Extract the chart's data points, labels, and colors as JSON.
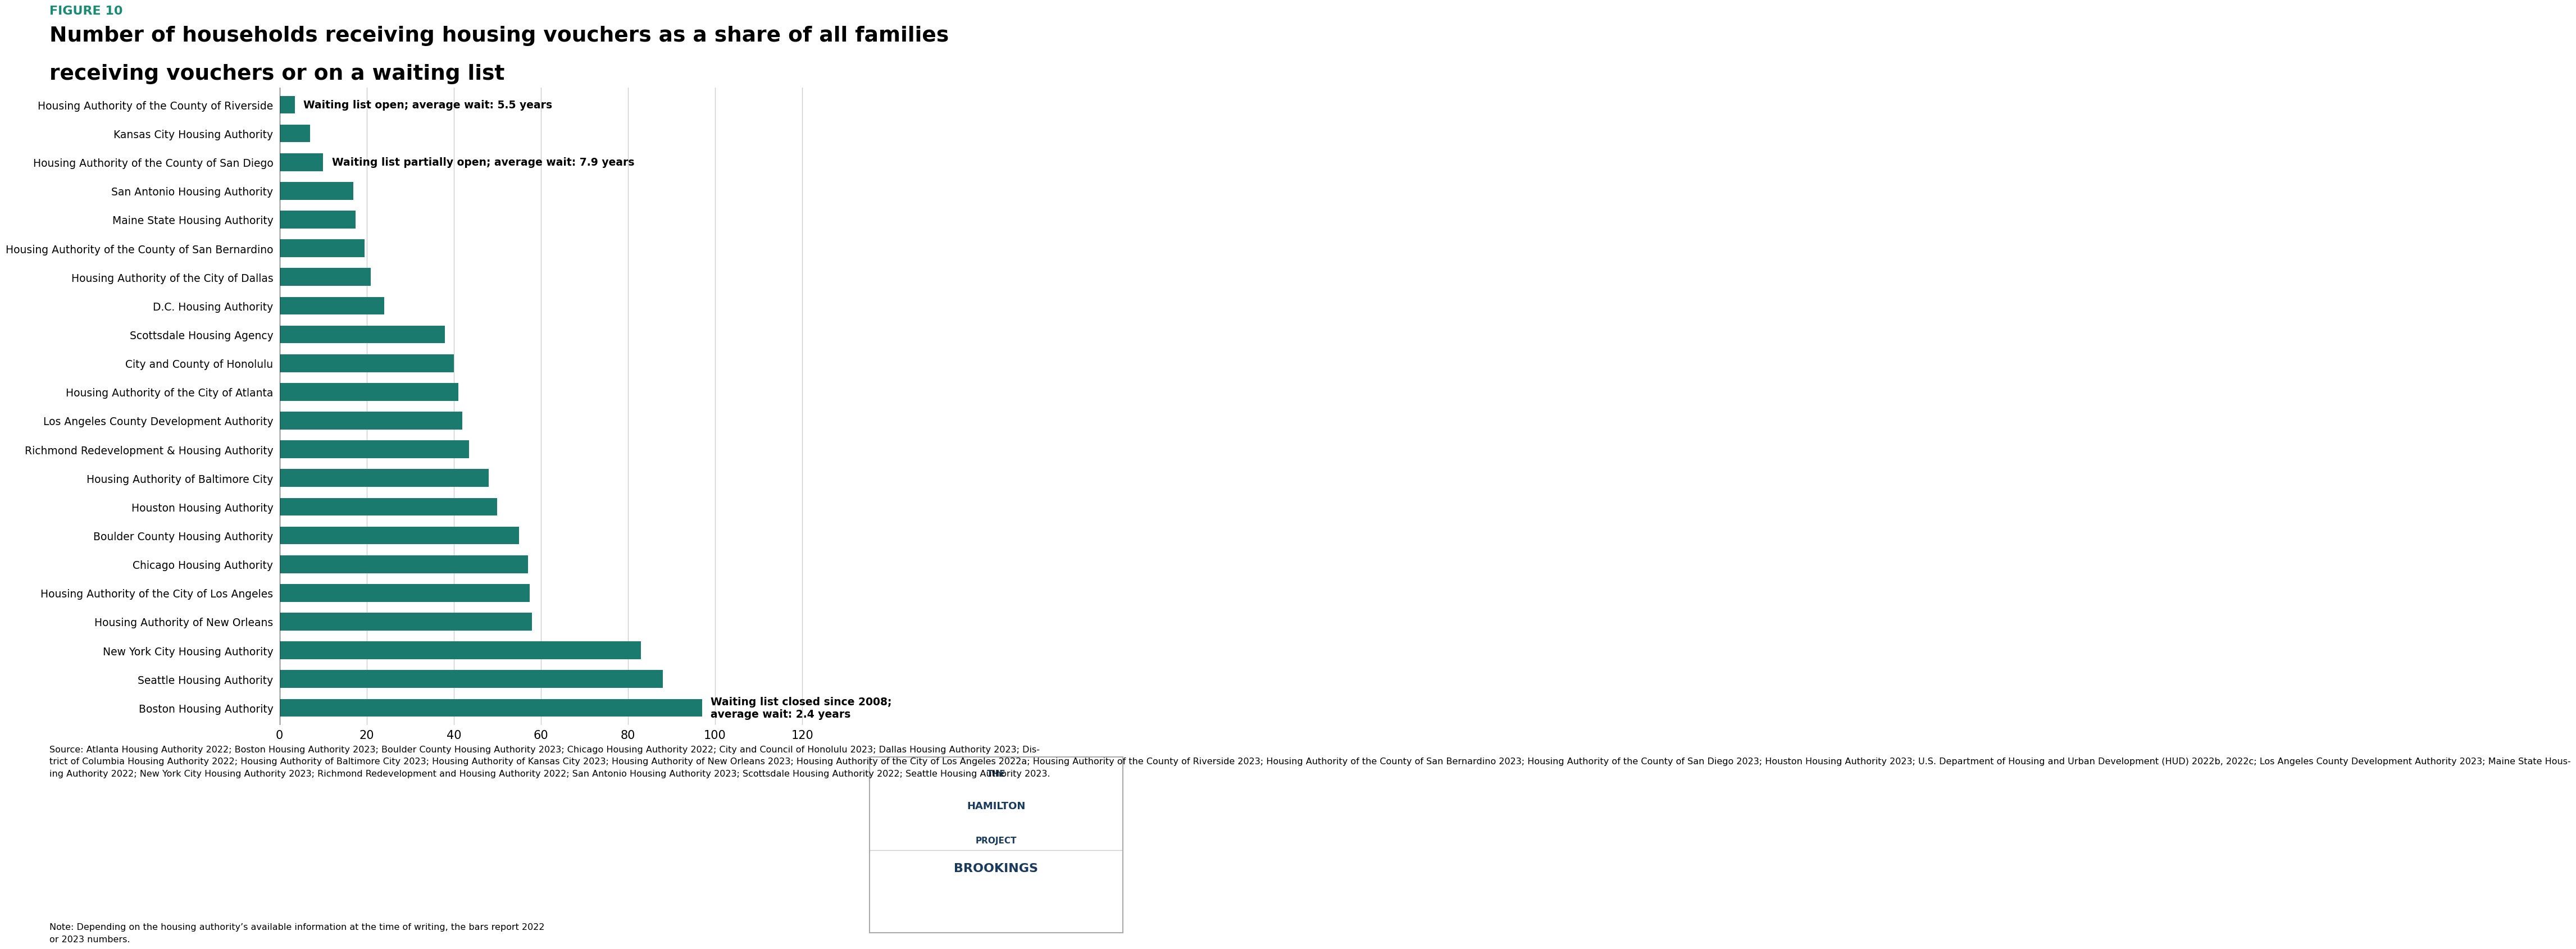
{
  "figure_label": "FIGURE 10",
  "title_line1": "Number of households receiving housing vouchers as a share of all families",
  "title_line2": "receiving vouchers or on a waiting list",
  "figure_label_color": "#1a8a72",
  "title_color": "#000000",
  "bar_color": "#1a7a6e",
  "categories": [
    "Housing Authority of the County of Riverside",
    "Kansas City Housing Authority",
    "Housing Authority of the County of San Diego",
    "San Antonio Housing Authority",
    "Maine State Housing Authority",
    "Housing Authority of the County of San Bernardino",
    "Housing Authority of the City of Dallas",
    "D.C. Housing Authority",
    "Scottsdale Housing Agency",
    "City and County of Honolulu",
    "Housing Authority of the City of Atlanta",
    "Los Angeles County Development Authority",
    "Richmond Redevelopment & Housing Authority",
    "Housing Authority of Baltimore City",
    "Houston Housing Authority",
    "Boulder County Housing Authority",
    "Chicago Housing Authority",
    "Housing Authority of the City of Los Angeles",
    "Housing Authority of New Orleans",
    "New York City Housing Authority",
    "Seattle Housing Authority",
    "Boston Housing Authority"
  ],
  "values": [
    3.5,
    7.0,
    10.0,
    17.0,
    17.5,
    19.5,
    21.0,
    24.0,
    38.0,
    40.0,
    41.0,
    42.0,
    43.5,
    48.0,
    50.0,
    55.0,
    57.0,
    57.5,
    58.0,
    83.0,
    88.0,
    97.0
  ],
  "annotation_0_text": "Waiting list open; average wait: 5.5 years",
  "annotation_0_bar_index": 0,
  "annotation_2_text": "Waiting list partially open; average wait: 7.9 years",
  "annotation_2_bar_index": 2,
  "annotation_21_text": "Waiting list closed since 2008;\naverage wait: 2.4 years",
  "annotation_21_bar_index": 21,
  "xlim_max": 130,
  "xticks": [
    0,
    20,
    40,
    60,
    80,
    100,
    120
  ],
  "grid_color": "#cccccc",
  "source_text": "Source: Atlanta Housing Authority 2022; Boston Housing Authority 2023; Boulder County Housing Authority 2023; Chicago Housing Authority 2022; City and Council of Honolulu 2023; Dallas Housing Authority 2023; Dis-\ntrict of Columbia Housing Authority 2022; Housing Authority of Baltimore City 2023; Housing Authority of Kansas City 2023; Housing Authority of New Orleans 2023; Housing Authority of the City of Los Angeles 2022a; Housing Authority of the County of Riverside 2023; Housing Authority of the County of San Bernardino 2023; Housing Authority of the County of San Diego 2023; Houston Housing Authority 2023; U.S. Department of Housing and Urban Development (HUD) 2022b, 2022c; Los Angeles County Development Authority 2023; Maine State Hous-\ning Authority 2022; New York City Housing Authority 2023; Richmond Redevelopment and Housing Authority 2022; San Antonio Housing Authority 2023; Scottsdale Housing Authority 2022; Seattle Housing Authority 2023.",
  "note_text": "Note: Depending on the housing authority’s available information at the time of writing, the bars report 2022\nor 2023 numbers.",
  "bg_color": "#ffffff",
  "hamilton_color": "#1a3a5c",
  "brookings_color": "#1a3a5c"
}
